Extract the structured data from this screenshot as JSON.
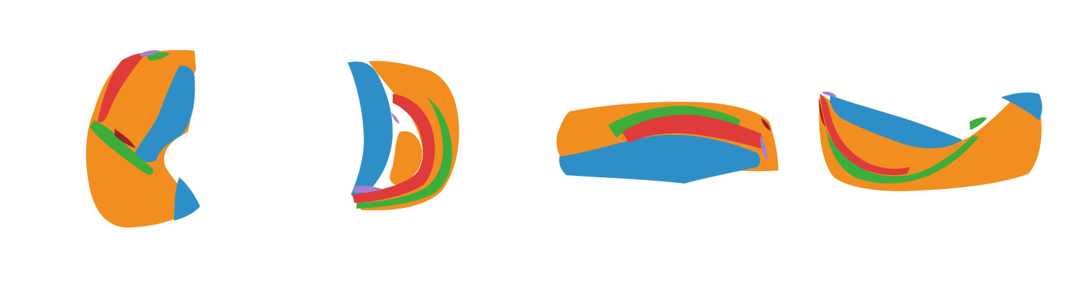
{
  "background": "#ffffff",
  "palette": {
    "orange": "#f28e1f",
    "blue": "#2e8fc8",
    "green": "#3cae3c",
    "red": "#df3b3b",
    "purple": "#a67fd0",
    "dark_red": "#9c2424"
  },
  "views": [
    {
      "id": "view-1",
      "description_free": true,
      "orientation": "front"
    },
    {
      "id": "view-2",
      "description_free": true,
      "orientation": "back"
    },
    {
      "id": "view-3",
      "description_free": true,
      "orientation": "top"
    },
    {
      "id": "view-4",
      "description_free": true,
      "orientation": "side"
    }
  ]
}
